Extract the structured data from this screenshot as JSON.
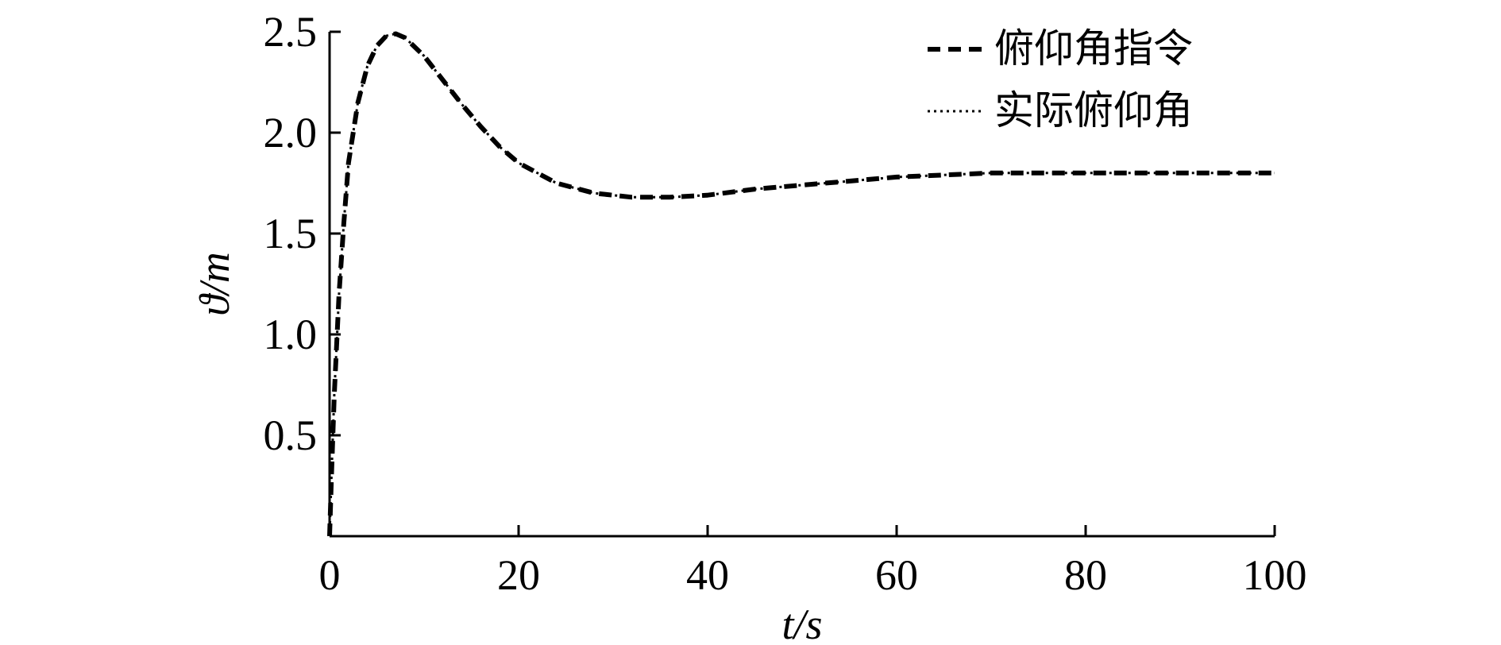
{
  "chart_data": {
    "type": "line",
    "xlabel": "t/s",
    "ylabel": "ϑ/m",
    "xlim": [
      0,
      100
    ],
    "ylim": [
      0,
      2.5
    ],
    "x_ticks": [
      0,
      20,
      40,
      60,
      80,
      100
    ],
    "x_tick_labels": [
      "0",
      "20",
      "40",
      "60",
      "80",
      "100"
    ],
    "y_ticks": [
      0.5,
      1.0,
      1.5,
      2.0,
      2.5
    ],
    "y_tick_labels": [
      "0.5",
      "1.0",
      "1.5",
      "2.0",
      "2.5"
    ],
    "grid": false,
    "legend_position": "top-right",
    "series": [
      {
        "name": "俯仰角指令",
        "style": "dash",
        "color": "#000000",
        "x": [
          0,
          0.2,
          0.5,
          1,
          1.5,
          2,
          3,
          4,
          5,
          6,
          7,
          8,
          10,
          12,
          14,
          16,
          18,
          20,
          24,
          28,
          32,
          36,
          40,
          45,
          50,
          55,
          60,
          65,
          70,
          75,
          80,
          85,
          90,
          95,
          100
        ],
        "y": [
          0,
          0.3,
          0.7,
          1.2,
          1.55,
          1.85,
          2.15,
          2.33,
          2.43,
          2.48,
          2.49,
          2.47,
          2.38,
          2.26,
          2.14,
          2.03,
          1.93,
          1.85,
          1.75,
          1.7,
          1.68,
          1.68,
          1.69,
          1.72,
          1.74,
          1.76,
          1.78,
          1.79,
          1.8,
          1.8,
          1.8,
          1.8,
          1.8,
          1.8,
          1.8
        ]
      },
      {
        "name": "实际俯仰角",
        "style": "dot",
        "color": "#000000",
        "x": [
          0,
          0.2,
          0.5,
          1,
          1.5,
          2,
          3,
          4,
          5,
          6,
          7,
          8,
          10,
          12,
          14,
          16,
          18,
          20,
          24,
          28,
          32,
          36,
          40,
          45,
          50,
          55,
          60,
          65,
          70,
          75,
          80,
          85,
          90,
          95,
          100
        ],
        "y": [
          0,
          0.3,
          0.7,
          1.2,
          1.55,
          1.85,
          2.15,
          2.33,
          2.43,
          2.48,
          2.49,
          2.47,
          2.38,
          2.26,
          2.14,
          2.03,
          1.93,
          1.85,
          1.75,
          1.7,
          1.68,
          1.68,
          1.69,
          1.72,
          1.74,
          1.76,
          1.78,
          1.79,
          1.8,
          1.8,
          1.8,
          1.8,
          1.8,
          1.8,
          1.8
        ]
      }
    ]
  }
}
